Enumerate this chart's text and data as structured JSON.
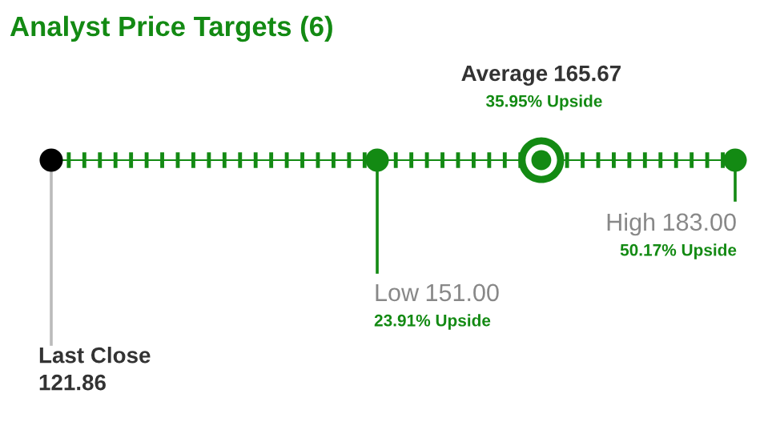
{
  "chart_data": {
    "type": "other",
    "title": "Analyst Price Targets (6)",
    "categories": [
      "Last Close",
      "Low",
      "Average",
      "High"
    ],
    "values": [
      121.86,
      151.0,
      165.67,
      183.0
    ],
    "value_labels": [
      "121.86",
      "151.00",
      "165.67",
      "183.00"
    ],
    "colors": [
      "#000000",
      "#138a13",
      "#138a13",
      "#138a13"
    ],
    "annotations": [
      "23.91% Upside",
      "35.95% Upside",
      "50.17% Upside"
    ]
  }
}
